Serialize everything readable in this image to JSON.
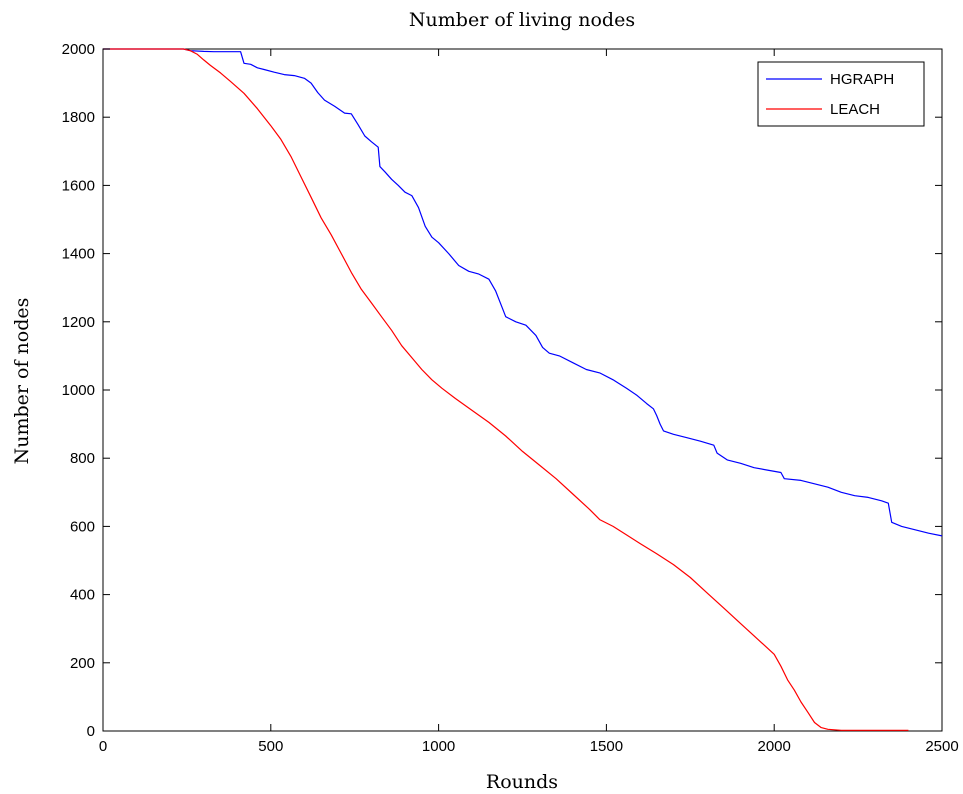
{
  "chart_data": {
    "type": "line",
    "title": "Number of living nodes",
    "xlabel": "Rounds",
    "ylabel": "Number of nodes",
    "xlim": [
      0,
      2500
    ],
    "ylim": [
      0,
      2000
    ],
    "xticks": [
      0,
      500,
      1000,
      1500,
      2000,
      2500
    ],
    "yticks": [
      0,
      200,
      400,
      600,
      800,
      1000,
      1200,
      1400,
      1600,
      1800,
      2000
    ],
    "grid": false,
    "legend_position": "top-right",
    "series": [
      {
        "name": "HGRAPH",
        "color": "#0000ff",
        "points": [
          [
            0,
            2000
          ],
          [
            240,
            2000
          ],
          [
            260,
            1995
          ],
          [
            300,
            1993
          ],
          [
            330,
            1992
          ],
          [
            380,
            1992
          ],
          [
            410,
            1992
          ],
          [
            420,
            1958
          ],
          [
            440,
            1955
          ],
          [
            460,
            1945
          ],
          [
            480,
            1940
          ],
          [
            510,
            1932
          ],
          [
            540,
            1925
          ],
          [
            570,
            1922
          ],
          [
            600,
            1914
          ],
          [
            620,
            1900
          ],
          [
            640,
            1872
          ],
          [
            660,
            1850
          ],
          [
            690,
            1832
          ],
          [
            720,
            1812
          ],
          [
            740,
            1810
          ],
          [
            760,
            1778
          ],
          [
            780,
            1745
          ],
          [
            800,
            1728
          ],
          [
            820,
            1712
          ],
          [
            825,
            1655
          ],
          [
            840,
            1640
          ],
          [
            860,
            1618
          ],
          [
            880,
            1600
          ],
          [
            900,
            1580
          ],
          [
            920,
            1570
          ],
          [
            940,
            1535
          ],
          [
            960,
            1480
          ],
          [
            980,
            1448
          ],
          [
            1000,
            1432
          ],
          [
            1030,
            1400
          ],
          [
            1060,
            1365
          ],
          [
            1090,
            1348
          ],
          [
            1120,
            1340
          ],
          [
            1150,
            1325
          ],
          [
            1170,
            1290
          ],
          [
            1190,
            1240
          ],
          [
            1200,
            1215
          ],
          [
            1230,
            1200
          ],
          [
            1260,
            1190
          ],
          [
            1290,
            1160
          ],
          [
            1310,
            1125
          ],
          [
            1330,
            1108
          ],
          [
            1360,
            1100
          ],
          [
            1400,
            1080
          ],
          [
            1440,
            1060
          ],
          [
            1480,
            1050
          ],
          [
            1520,
            1030
          ],
          [
            1560,
            1005
          ],
          [
            1590,
            985
          ],
          [
            1620,
            960
          ],
          [
            1640,
            945
          ],
          [
            1650,
            925
          ],
          [
            1660,
            900
          ],
          [
            1670,
            880
          ],
          [
            1700,
            870
          ],
          [
            1740,
            860
          ],
          [
            1780,
            850
          ],
          [
            1820,
            838
          ],
          [
            1830,
            815
          ],
          [
            1860,
            795
          ],
          [
            1900,
            785
          ],
          [
            1940,
            772
          ],
          [
            1980,
            765
          ],
          [
            2020,
            758
          ],
          [
            2030,
            740
          ],
          [
            2080,
            735
          ],
          [
            2120,
            725
          ],
          [
            2160,
            715
          ],
          [
            2200,
            700
          ],
          [
            2240,
            690
          ],
          [
            2280,
            685
          ],
          [
            2320,
            675
          ],
          [
            2340,
            668
          ],
          [
            2350,
            612
          ],
          [
            2380,
            600
          ],
          [
            2420,
            590
          ],
          [
            2460,
            580
          ],
          [
            2500,
            572
          ]
        ]
      },
      {
        "name": "LEACH",
        "color": "#ff0000",
        "points": [
          [
            0,
            2000
          ],
          [
            240,
            2000
          ],
          [
            260,
            1995
          ],
          [
            280,
            1985
          ],
          [
            300,
            1968
          ],
          [
            320,
            1952
          ],
          [
            350,
            1930
          ],
          [
            380,
            1905
          ],
          [
            420,
            1870
          ],
          [
            460,
            1825
          ],
          [
            500,
            1775
          ],
          [
            530,
            1735
          ],
          [
            560,
            1685
          ],
          [
            590,
            1625
          ],
          [
            620,
            1565
          ],
          [
            650,
            1505
          ],
          [
            680,
            1455
          ],
          [
            710,
            1400
          ],
          [
            740,
            1345
          ],
          [
            770,
            1295
          ],
          [
            800,
            1255
          ],
          [
            830,
            1215
          ],
          [
            860,
            1175
          ],
          [
            890,
            1130
          ],
          [
            920,
            1095
          ],
          [
            950,
            1060
          ],
          [
            980,
            1030
          ],
          [
            1010,
            1005
          ],
          [
            1050,
            975
          ],
          [
            1100,
            940
          ],
          [
            1150,
            905
          ],
          [
            1200,
            865
          ],
          [
            1250,
            820
          ],
          [
            1300,
            780
          ],
          [
            1350,
            740
          ],
          [
            1400,
            695
          ],
          [
            1450,
            650
          ],
          [
            1480,
            620
          ],
          [
            1520,
            600
          ],
          [
            1560,
            575
          ],
          [
            1600,
            550
          ],
          [
            1650,
            520
          ],
          [
            1700,
            488
          ],
          [
            1750,
            450
          ],
          [
            1800,
            405
          ],
          [
            1850,
            360
          ],
          [
            1900,
            315
          ],
          [
            1950,
            270
          ],
          [
            2000,
            225
          ],
          [
            2020,
            190
          ],
          [
            2040,
            150
          ],
          [
            2060,
            120
          ],
          [
            2080,
            85
          ],
          [
            2100,
            55
          ],
          [
            2120,
            25
          ],
          [
            2140,
            10
          ],
          [
            2160,
            5
          ],
          [
            2200,
            2
          ],
          [
            2300,
            2
          ],
          [
            2400,
            2
          ]
        ]
      }
    ]
  }
}
